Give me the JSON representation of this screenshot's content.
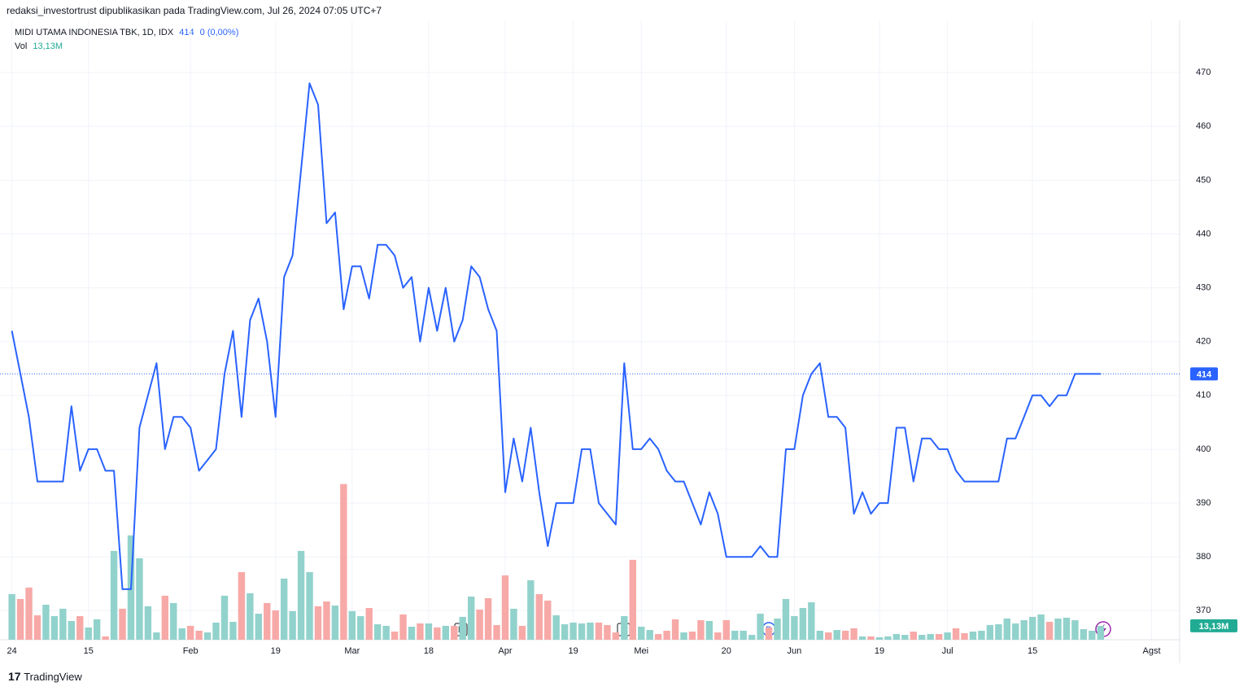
{
  "header": {
    "publisher": "redaksi_investortrust dipublikasikan pada TradingView.com, Jul 26, 2024 07:05 UTC+7",
    "brand": "TradingView"
  },
  "chart_data": {
    "type": "line",
    "change": "0 (0,00%)",
    "event_markers": [
      "E",
      "E",
      "D"
    ],
    "series": [
      {
        "name": "MIDI UTAMA INDONESIA TBK, 1D, IDX",
        "color": "#2962ff",
        "values": [
          422,
          414,
          406,
          394,
          394,
          394,
          394,
          408,
          396,
          400,
          400,
          396,
          396,
          374,
          374,
          404,
          410,
          416,
          400,
          406,
          406,
          404,
          396,
          398,
          400,
          414,
          422,
          406,
          424,
          428,
          420,
          406,
          432,
          436,
          452,
          468,
          464,
          442,
          444,
          426,
          434,
          434,
          428,
          438,
          438,
          436,
          430,
          432,
          420,
          430,
          422,
          430,
          420,
          424,
          434,
          432,
          426,
          422,
          392,
          402,
          394,
          404,
          392,
          382,
          390,
          390,
          390,
          400,
          400,
          390,
          388,
          386,
          416,
          400,
          400,
          402,
          400,
          396,
          394,
          394,
          390,
          386,
          392,
          388,
          380,
          380,
          380,
          380,
          382,
          380,
          380,
          400,
          400,
          410,
          414,
          416,
          406,
          406,
          404,
          388,
          392,
          388,
          390,
          390,
          404,
          404,
          394,
          402,
          402,
          400,
          400,
          396,
          394,
          394,
          394,
          394,
          394,
          402,
          402,
          406,
          410,
          410,
          408,
          410,
          410,
          414,
          414,
          414,
          414
        ]
      },
      {
        "name": "Vol",
        "up_color": "#92d2cc",
        "down_color": "#f7a9a7",
        "label_color": "#22ab94",
        "values": [
          43.1,
          38.5,
          49.3,
          23.1,
          33.1,
          22.3,
          29.3,
          17.7,
          22.3,
          11.6,
          19.3,
          3.1,
          83.9,
          29.3,
          98.6,
          77,
          31.6,
          6.9,
          41.6,
          34.7,
          10.8,
          13.1,
          8.5,
          6.9,
          16.2,
          41.6,
          16.9,
          63.9,
          43.9,
          24.6,
          34.7,
          27.7,
          57.8,
          27,
          83.9,
          63.9,
          31.6,
          36.2,
          32.3,
          147.1,
          27,
          22.3,
          30,
          14.6,
          13.1,
          7.7,
          23.9,
          12.3,
          15.4,
          15.4,
          11.6,
          13.1,
          13.1,
          21.6,
          40.8,
          28.5,
          39.3,
          13.9,
          60.8,
          29.3,
          13.1,
          56.2,
          43.1,
          37,
          23.1,
          14.6,
          16.2,
          15.4,
          16.2,
          16.2,
          13.9,
          6.9,
          22.3,
          75.5,
          12.3,
          9.2,
          5.4,
          8.5,
          19.3,
          6.9,
          7.7,
          18.5,
          17.7,
          6.9,
          18.5,
          8.5,
          8.5,
          4.6,
          24.6,
          11.6,
          20,
          38.5,
          22.3,
          30,
          35.4,
          8.5,
          6.9,
          9.2,
          8.5,
          10.8,
          3.1,
          3.1,
          2.3,
          3.1,
          5.4,
          4.6,
          7.7,
          4.6,
          5.4,
          5.4,
          6.9,
          10.8,
          6.2,
          7.7,
          8.5,
          13.9,
          14.6,
          20,
          15.4,
          18.5,
          21.6,
          23.9,
          16.9,
          20,
          20.8,
          18.5,
          10,
          8.5,
          13.13
        ],
        "value_labels": [
          null,
          null,
          null,
          null,
          null,
          null,
          null,
          null,
          null,
          null,
          null,
          null,
          null,
          null,
          null,
          null,
          null,
          null,
          null,
          null,
          null,
          null,
          null,
          null,
          null,
          null,
          null,
          null,
          null,
          null,
          null,
          null,
          null,
          null,
          null,
          null,
          null,
          null,
          null,
          null,
          null,
          null,
          null,
          null,
          null,
          null,
          null,
          null,
          null,
          null,
          null,
          null,
          null,
          null,
          null,
          null,
          null,
          null,
          null,
          null,
          null,
          null,
          null,
          null,
          null,
          null,
          null,
          null,
          null,
          null,
          null,
          null,
          null,
          null,
          null,
          null,
          null,
          null,
          null,
          null,
          null,
          null,
          null,
          null,
          null,
          null,
          null,
          null,
          null,
          null,
          null,
          null,
          null,
          null,
          null,
          null,
          null,
          null,
          null,
          null,
          null,
          null,
          null,
          null,
          null,
          null,
          null,
          null,
          null,
          null,
          null,
          null,
          null,
          null,
          null,
          null,
          null,
          null,
          null,
          null,
          null,
          null,
          null,
          null,
          null,
          null,
          null,
          null,
          "13,13M"
        ]
      }
    ],
    "ylim": [
      364.6,
      479.7
    ],
    "yticks": [
      370,
      380,
      390,
      400,
      410,
      420,
      430,
      440,
      450,
      460,
      470
    ],
    "volume_ylim": [
      0,
      150
    ],
    "xlim": [
      -1.4,
      137.3
    ],
    "xticks": [
      {
        "value": 0,
        "label": "24"
      },
      {
        "value": 9,
        "label": "15"
      },
      {
        "value": 21,
        "label": "Feb"
      },
      {
        "value": 31,
        "label": "19"
      },
      {
        "value": 40,
        "label": "Mar"
      },
      {
        "value": 49,
        "label": "18"
      },
      {
        "value": 58,
        "label": "Apr"
      },
      {
        "value": 66,
        "label": "19"
      },
      {
        "value": 74,
        "label": "Mei"
      },
      {
        "value": 84,
        "label": "20"
      },
      {
        "value": 92,
        "label": "Jun"
      },
      {
        "value": 102,
        "label": "19"
      },
      {
        "value": 110,
        "label": "Jul"
      },
      {
        "value": 120,
        "label": "15"
      },
      {
        "value": 134,
        "label": "Agst"
      }
    ],
    "grid": true
  }
}
